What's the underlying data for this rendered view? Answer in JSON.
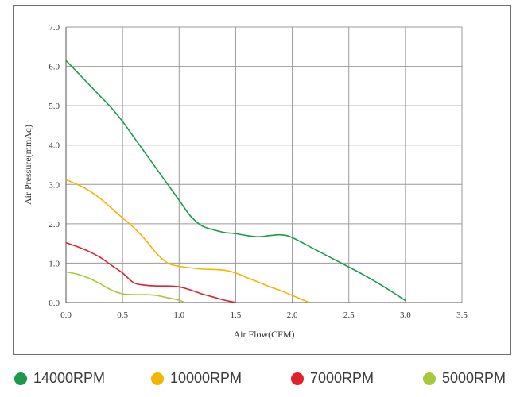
{
  "chart_data": {
    "type": "line",
    "xlabel": "Air Flow(CFM)",
    "ylabel": "Air Pressure(mmAq)",
    "xlim": [
      0,
      3.5
    ],
    "ylim": [
      0,
      7
    ],
    "x_ticks": [
      "0.0",
      "0.5",
      "1.0",
      "1.5",
      "2.0",
      "2.5",
      "3.0",
      "3.5"
    ],
    "y_ticks": [
      "0.0",
      "1.0",
      "2.0",
      "3.0",
      "4.0",
      "5.0",
      "6.0",
      "7.0"
    ],
    "grid": true,
    "legend_position": "bottom",
    "series": [
      {
        "name": "14000RPM",
        "color": "#1a9a4a",
        "points": [
          [
            0,
            6.15
          ],
          [
            0.1,
            5.85
          ],
          [
            0.2,
            5.55
          ],
          [
            0.3,
            5.25
          ],
          [
            0.4,
            4.95
          ],
          [
            0.5,
            4.6
          ],
          [
            0.6,
            4.2
          ],
          [
            0.7,
            3.8
          ],
          [
            0.8,
            3.4
          ],
          [
            0.9,
            3.0
          ],
          [
            1.0,
            2.6
          ],
          [
            1.1,
            2.2
          ],
          [
            1.2,
            1.95
          ],
          [
            1.3,
            1.85
          ],
          [
            1.4,
            1.78
          ],
          [
            1.5,
            1.75
          ],
          [
            1.6,
            1.7
          ],
          [
            1.7,
            1.67
          ],
          [
            1.8,
            1.7
          ],
          [
            1.9,
            1.72
          ],
          [
            2.0,
            1.65
          ],
          [
            2.2,
            1.35
          ],
          [
            2.4,
            1.05
          ],
          [
            2.6,
            0.75
          ],
          [
            2.8,
            0.42
          ],
          [
            3.0,
            0.05
          ]
        ]
      },
      {
        "name": "10000RPM",
        "color": "#f4b400",
        "points": [
          [
            0,
            3.12
          ],
          [
            0.1,
            3.0
          ],
          [
            0.2,
            2.85
          ],
          [
            0.3,
            2.65
          ],
          [
            0.4,
            2.4
          ],
          [
            0.5,
            2.15
          ],
          [
            0.6,
            1.9
          ],
          [
            0.7,
            1.6
          ],
          [
            0.8,
            1.25
          ],
          [
            0.9,
            1.0
          ],
          [
            1.0,
            0.92
          ],
          [
            1.1,
            0.88
          ],
          [
            1.2,
            0.85
          ],
          [
            1.3,
            0.84
          ],
          [
            1.4,
            0.82
          ],
          [
            1.5,
            0.75
          ],
          [
            1.6,
            0.63
          ],
          [
            1.7,
            0.52
          ],
          [
            1.8,
            0.4
          ],
          [
            1.9,
            0.3
          ],
          [
            2.0,
            0.18
          ],
          [
            2.15,
            0.0
          ]
        ]
      },
      {
        "name": "7000RPM",
        "color": "#e0202a",
        "points": [
          [
            0,
            1.52
          ],
          [
            0.1,
            1.42
          ],
          [
            0.2,
            1.3
          ],
          [
            0.3,
            1.15
          ],
          [
            0.4,
            0.95
          ],
          [
            0.5,
            0.75
          ],
          [
            0.6,
            0.5
          ],
          [
            0.7,
            0.44
          ],
          [
            0.8,
            0.42
          ],
          [
            0.9,
            0.42
          ],
          [
            1.0,
            0.4
          ],
          [
            1.1,
            0.32
          ],
          [
            1.2,
            0.22
          ],
          [
            1.3,
            0.14
          ],
          [
            1.4,
            0.06
          ],
          [
            1.5,
            0.0
          ]
        ]
      },
      {
        "name": "5000RPM",
        "color": "#a6c83a",
        "points": [
          [
            0,
            0.78
          ],
          [
            0.1,
            0.72
          ],
          [
            0.2,
            0.62
          ],
          [
            0.3,
            0.48
          ],
          [
            0.4,
            0.32
          ],
          [
            0.5,
            0.22
          ],
          [
            0.6,
            0.2
          ],
          [
            0.7,
            0.2
          ],
          [
            0.8,
            0.18
          ],
          [
            0.9,
            0.12
          ],
          [
            1.0,
            0.06
          ],
          [
            1.05,
            0.0
          ]
        ]
      }
    ]
  }
}
